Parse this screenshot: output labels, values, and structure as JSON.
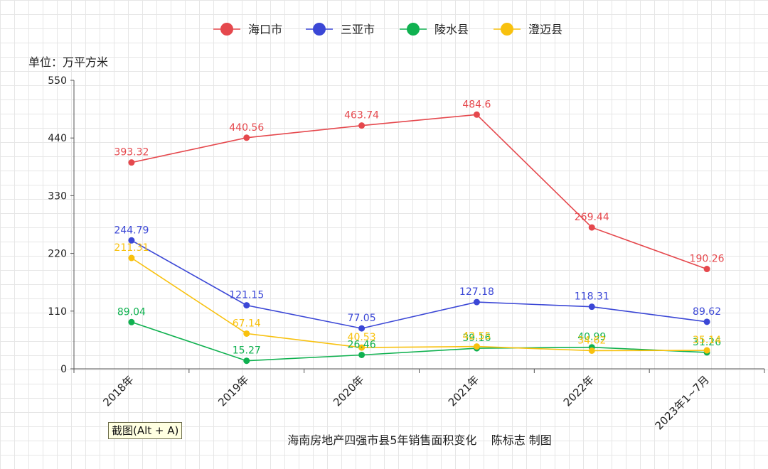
{
  "chart_data": {
    "type": "line",
    "categories": [
      "2018年",
      "2019年",
      "2020年",
      "2021年",
      "2022年",
      "2023年1~7月"
    ],
    "series": [
      {
        "name": "海口市",
        "color": "#e5484d",
        "values": [
          393.32,
          440.56,
          463.74,
          484.6,
          269.44,
          190.26
        ],
        "labels": [
          "393.32",
          "440.56",
          "463.74",
          "484.6",
          "269.44",
          "190.26"
        ]
      },
      {
        "name": "三亚市",
        "color": "#3b47d6",
        "values": [
          244.79,
          121.15,
          77.05,
          127.18,
          118.31,
          89.62
        ],
        "labels": [
          "244.79",
          "121.15",
          "77.05",
          "127.18",
          "118.31",
          "89.62"
        ]
      },
      {
        "name": "陵水县",
        "color": "#10b150",
        "values": [
          89.04,
          15.27,
          26.46,
          39.16,
          40.99,
          31.26
        ],
        "labels": [
          "89.04",
          "15.27",
          "26.46",
          "39.16",
          "40.99",
          "31.26"
        ]
      },
      {
        "name": "澄迈县",
        "color": "#f8c10e",
        "values": [
          211.31,
          67.14,
          40.53,
          42.55,
          34.62,
          35.14
        ],
        "labels": [
          "211.31",
          "67.14",
          "40.53",
          "42.55",
          "34.62",
          "35.14"
        ]
      }
    ],
    "ylim": [
      0,
      550
    ],
    "yticks": [
      "0",
      "110",
      "220",
      "330",
      "440",
      "550"
    ],
    "unit_label": "单位：万平方米",
    "caption": "海南房地产四强市县5年销售面积变化    陈标志 制图",
    "legend_position": "top-center",
    "grid": true
  },
  "overlay": {
    "screenshot_hint": "截图(Alt + A)"
  }
}
